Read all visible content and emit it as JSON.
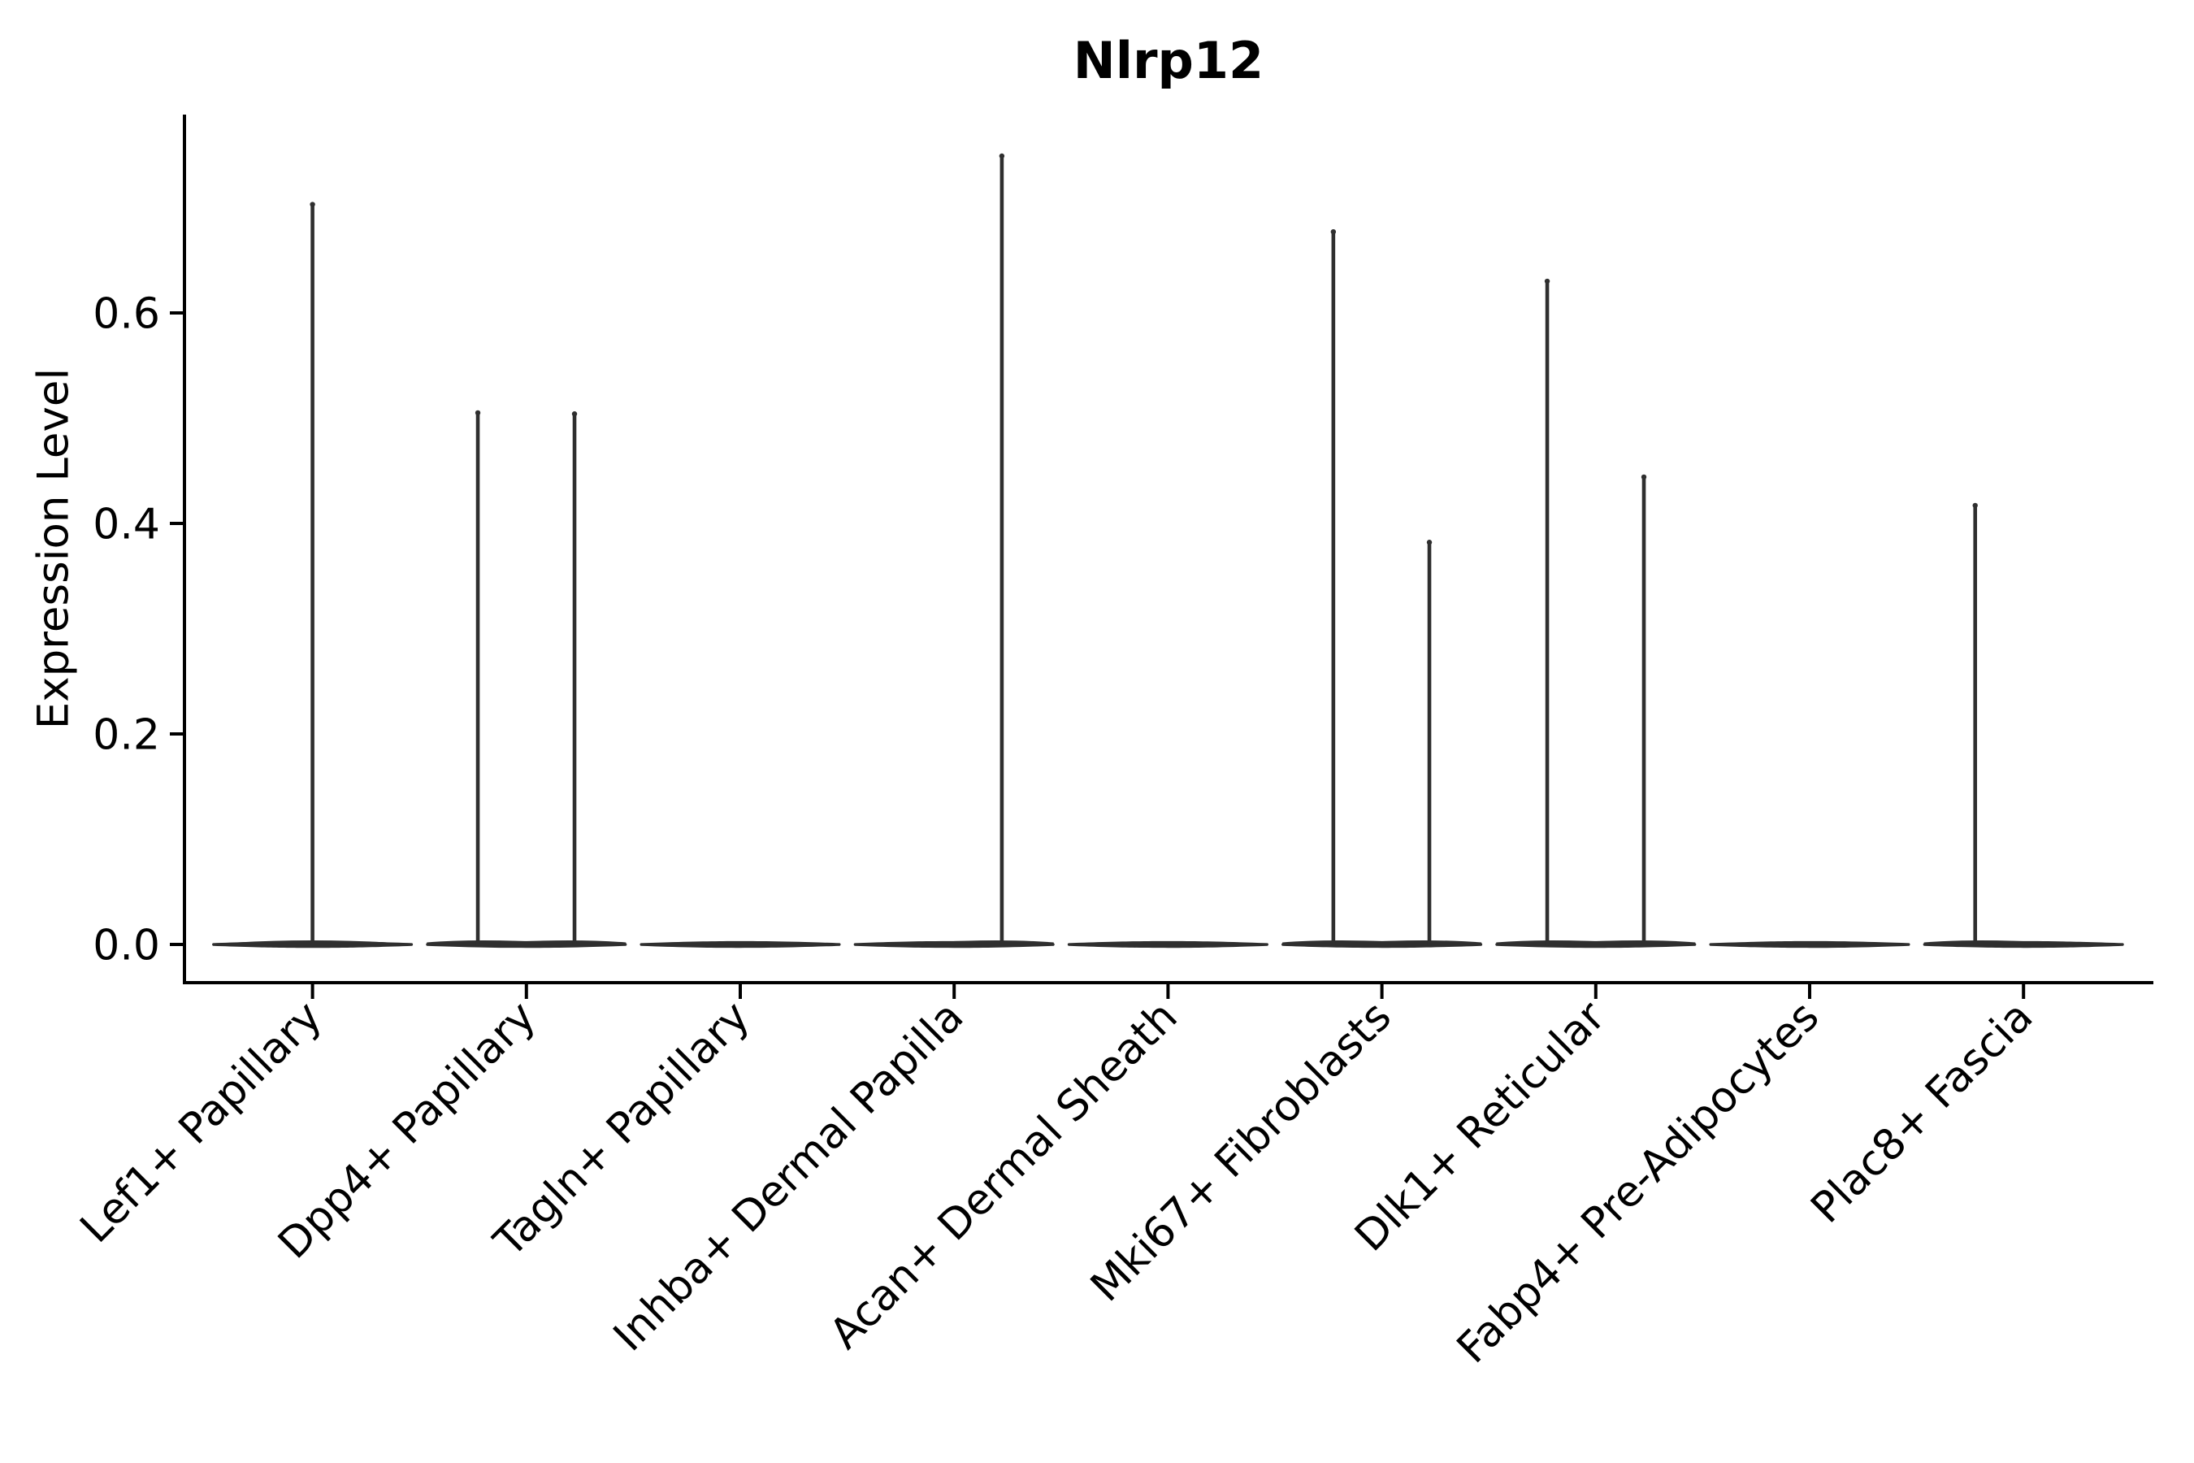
{
  "chart_data": {
    "type": "violin",
    "title": "Nlrp12",
    "ylabel": "Expression Level",
    "xlabel": "",
    "ylim": [
      -0.038,
      0.789
    ],
    "y_ticks": [
      0.0,
      0.2,
      0.4,
      0.6
    ],
    "y_tick_labels": [
      "0.0",
      "0.2",
      "0.4",
      "0.6"
    ],
    "grid": false,
    "legend": "none",
    "categories": [
      "Lef1+ Papillary",
      "Dpp4+ Papillary",
      "Tagln+ Papillary",
      "Inhba+ Dermal Papilla",
      "Acan+ Dermal Sheath",
      "Mki67+ Fibroblasts",
      "Dlk1+ Reticular",
      "Fabp4+ Pre-Adipocytes",
      "Plac8+ Fascia"
    ],
    "violins": [
      {
        "category": "Lef1+ Papillary",
        "bulk_value": 0.0,
        "spikes": [
          {
            "offset_frac": 0.0,
            "max_value": 0.705
          }
        ]
      },
      {
        "category": "Dpp4+ Papillary",
        "bulk_value": 0.0,
        "spikes": [
          {
            "offset_frac": -0.227,
            "max_value": 0.507
          },
          {
            "offset_frac": 0.225,
            "max_value": 0.506
          }
        ]
      },
      {
        "category": "Tagln+ Papillary",
        "bulk_value": 0.0,
        "spikes": []
      },
      {
        "category": "Inhba+ Dermal Papilla",
        "bulk_value": 0.0,
        "spikes": [
          {
            "offset_frac": 0.223,
            "max_value": 0.751
          }
        ]
      },
      {
        "category": "Acan+ Dermal Sheath",
        "bulk_value": 0.0,
        "spikes": []
      },
      {
        "category": "Mki67+ Fibroblasts",
        "bulk_value": 0.0,
        "spikes": [
          {
            "offset_frac": -0.227,
            "max_value": 0.679
          },
          {
            "offset_frac": 0.222,
            "max_value": 0.384
          }
        ]
      },
      {
        "category": "Dlk1+ Reticular",
        "bulk_value": 0.0,
        "spikes": [
          {
            "offset_frac": -0.227,
            "max_value": 0.632
          },
          {
            "offset_frac": 0.225,
            "max_value": 0.446
          }
        ]
      },
      {
        "category": "Fabp4+ Pre-Adipocytes",
        "bulk_value": 0.0,
        "spikes": []
      },
      {
        "category": "Plac8+ Fascia",
        "bulk_value": 0.0,
        "spikes": [
          {
            "offset_frac": -0.226,
            "max_value": 0.419
          }
        ]
      }
    ],
    "colors": {
      "violin_fill": "#2f2f2f",
      "axis_line": "#000000",
      "text": "#000000",
      "background": "#ffffff"
    }
  }
}
